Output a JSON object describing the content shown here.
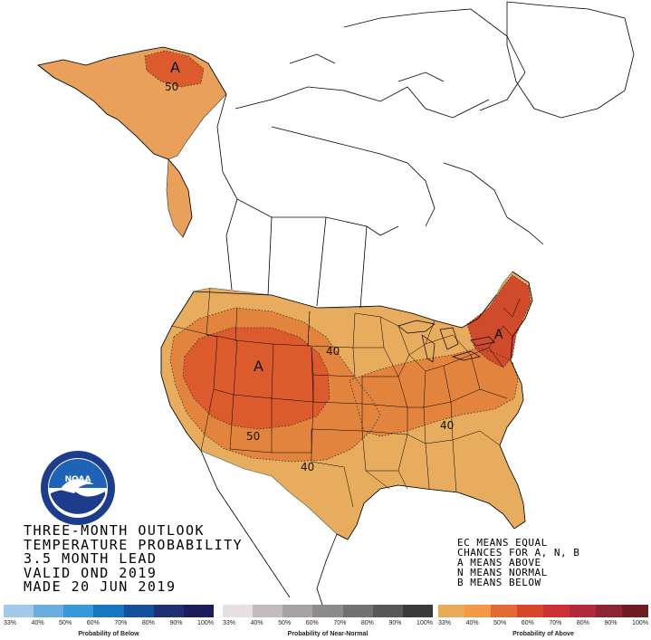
{
  "title_lines": [
    "THREE-MONTH OUTLOOK",
    "TEMPERATURE PROBABILITY",
    "3.5 MONTH LEAD",
    "VALID OND 2019",
    "MADE 20 JUN 2019"
  ],
  "key_lines": [
    "EC MEANS EQUAL",
    "CHANCES FOR A, N, B",
    "A MEANS ABOVE",
    "N MEANS NORMAL",
    "B MEANS BELOW"
  ],
  "map_labels": {
    "alaska_category": "A",
    "alaska_contour": "50",
    "west_category": "A",
    "plains_contour": "40",
    "southwest_contour_50": "50",
    "south_contour": "40",
    "southeast_contour": "40",
    "northeast_category": "A"
  },
  "legends": {
    "below": {
      "caption": "Probability of Below",
      "ticks": [
        "33%",
        "40%",
        "50%",
        "60%",
        "70%",
        "80%",
        "90%",
        "100%"
      ],
      "colors": [
        "#a3c8e8",
        "#6aaee0",
        "#3b98d8",
        "#1a75c0",
        "#15509a",
        "#1f2f72",
        "#1c1d5c"
      ]
    },
    "normal": {
      "caption": "Probability of Near-Normal",
      "ticks": [
        "33%",
        "40%",
        "50%",
        "60%",
        "70%",
        "80%",
        "90%",
        "100%"
      ],
      "colors": [
        "#e6e0e3",
        "#c2bcbf",
        "#a6a2a4",
        "#8e8b8d",
        "#737173",
        "#585658",
        "#3a3a3a"
      ]
    },
    "above": {
      "caption": "Probability of Above",
      "ticks": [
        "33%",
        "40%",
        "50%",
        "60%",
        "70%",
        "80%",
        "90%",
        "100%"
      ],
      "colors": [
        "#e9ab5a",
        "#f39a46",
        "#e26a34",
        "#d6462b",
        "#cd2f35",
        "#b22a3a",
        "#8c2533",
        "#6e1d24"
      ]
    }
  },
  "colors": {
    "above_33": "#e8ac5e",
    "above_40": "#e3843e",
    "above_50": "#dc5b2c",
    "above_60": "#cf4b2c"
  },
  "logo_text": "NOAA"
}
